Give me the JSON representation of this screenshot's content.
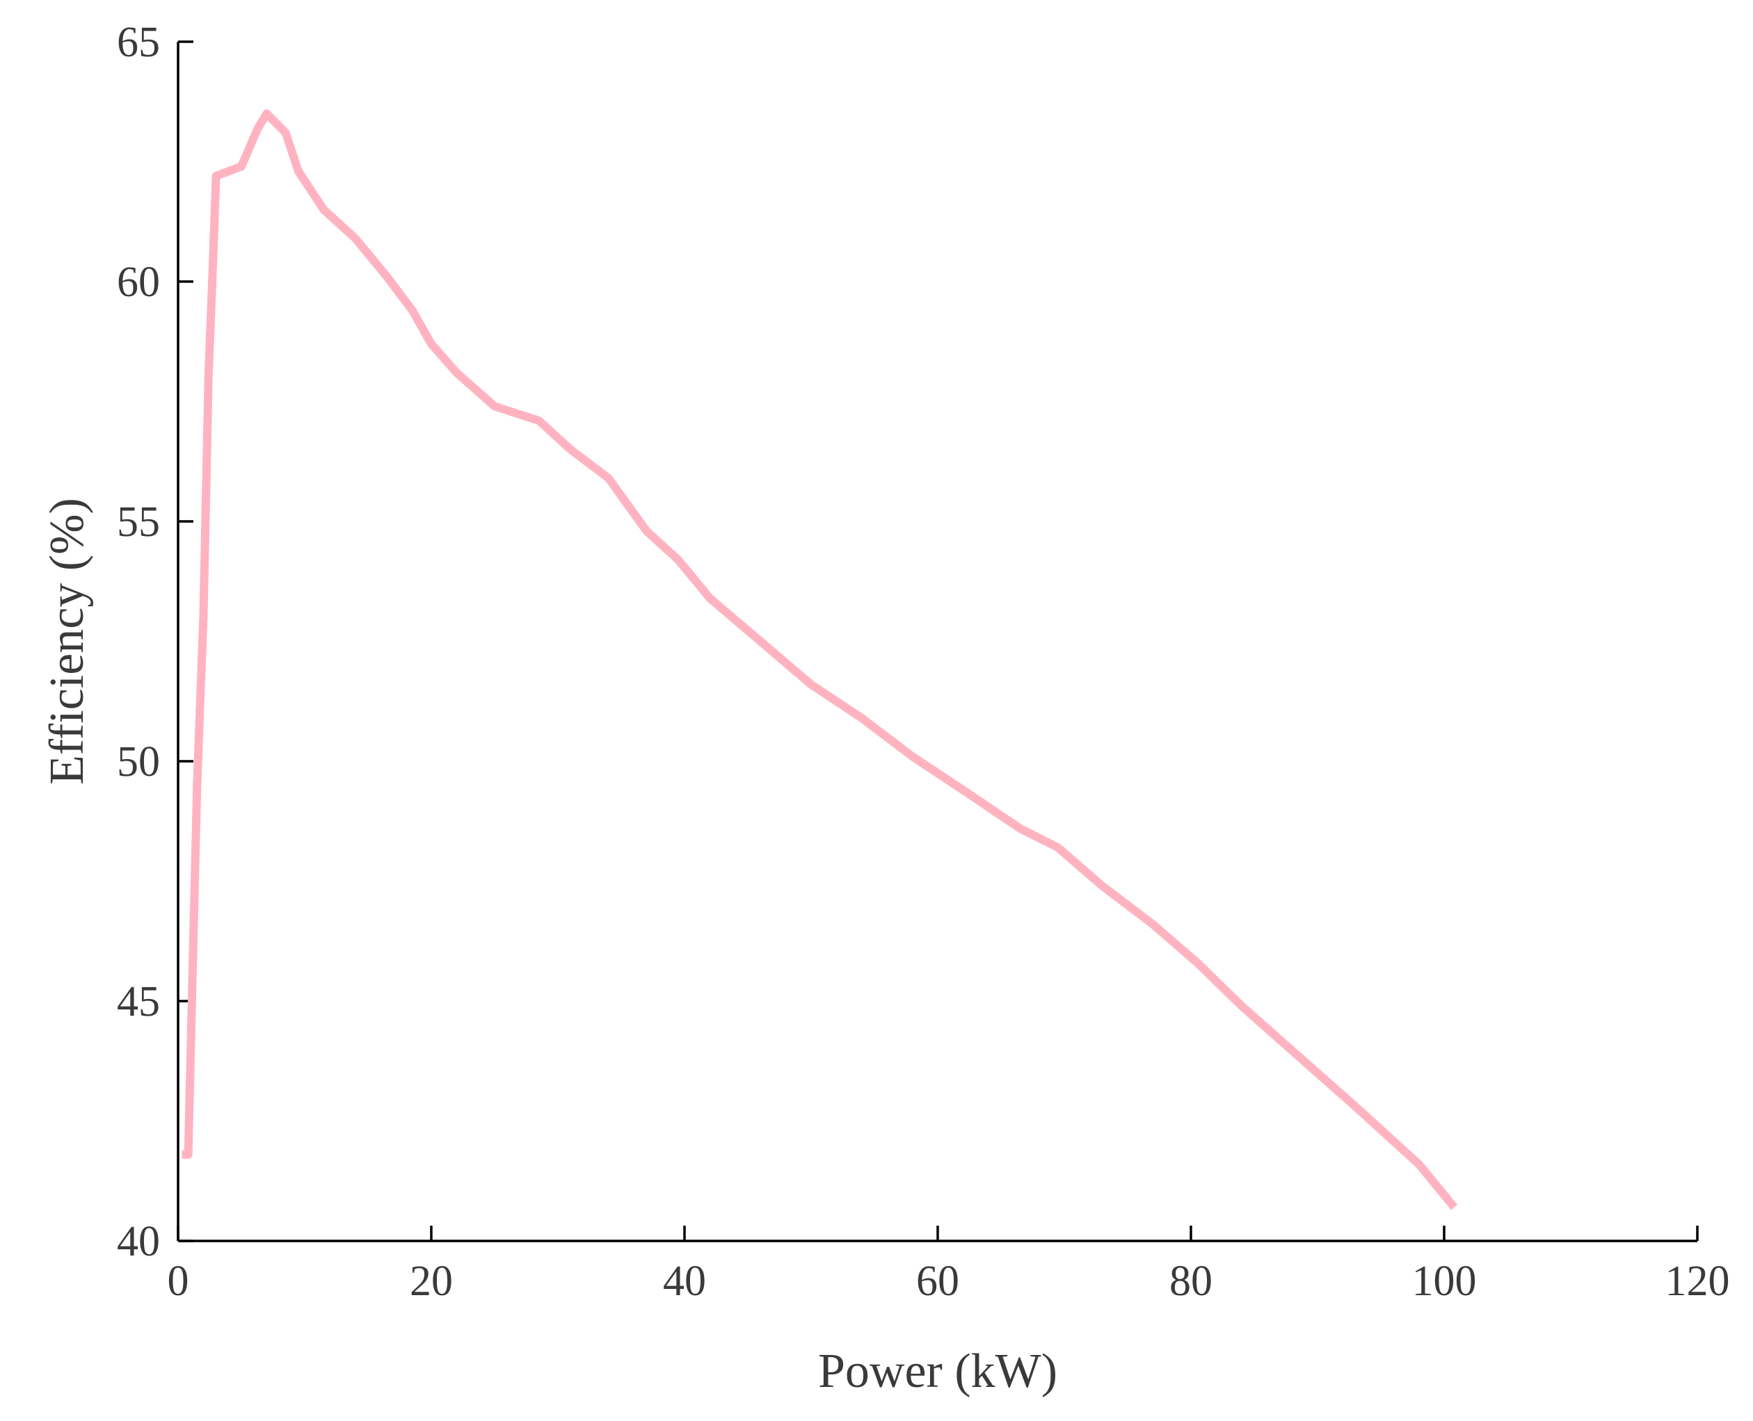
{
  "chart_data": {
    "type": "line",
    "title": "",
    "xlabel": "Power (kW)",
    "ylabel": "Efficiency (%)",
    "xlim": [
      0,
      120
    ],
    "ylim": [
      40,
      65
    ],
    "xticks": [
      0,
      20,
      40,
      60,
      80,
      100,
      120
    ],
    "yticks": [
      40,
      45,
      50,
      55,
      60,
      65
    ],
    "grid": false,
    "legend": "none",
    "series": [
      {
        "color": "#ffb3c1",
        "x": [
          0.3,
          0.8,
          1.5,
          2.0,
          2.4,
          2.7,
          3.0,
          5.0,
          6.3,
          7.0,
          8.5,
          9.5,
          11.5,
          14.0,
          16.5,
          18.5,
          20.0,
          22.0,
          25.0,
          28.5,
          31.0,
          34.0,
          37.0,
          39.5,
          42.0,
          46.0,
          50.0,
          54.0,
          58.0,
          62.0,
          66.5,
          69.5,
          73.0,
          77.0,
          80.5,
          84.0,
          87.0,
          90.0,
          93.0,
          95.5,
          98.0,
          100.8
        ],
        "y": [
          41.8,
          41.8,
          49.5,
          53.0,
          58.0,
          60.0,
          62.2,
          62.4,
          63.2,
          63.5,
          63.1,
          62.3,
          61.5,
          60.9,
          60.1,
          59.4,
          58.7,
          58.1,
          57.4,
          57.1,
          56.5,
          55.9,
          54.8,
          54.2,
          53.4,
          52.5,
          51.6,
          50.9,
          50.1,
          49.4,
          48.6,
          48.2,
          47.4,
          46.6,
          45.8,
          44.9,
          44.2,
          43.5,
          42.8,
          42.2,
          41.6,
          40.7
        ]
      }
    ]
  }
}
